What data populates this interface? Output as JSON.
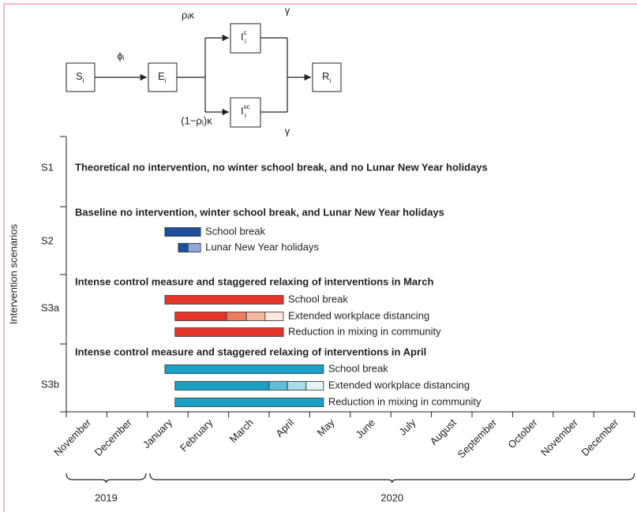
{
  "diagram": {
    "nodes": [
      {
        "base": "S",
        "sub": "i"
      },
      {
        "base": "E",
        "sub": "i"
      },
      {
        "base": "I",
        "sup": "c",
        "sub": "i"
      },
      {
        "base": "I",
        "sup": "sc",
        "sub": "i"
      },
      {
        "base": "R",
        "sub": "i"
      }
    ],
    "edge_labels": [
      "ϕᵢ",
      "ρᵢκ",
      "(1−ρᵢ)κ",
      "γ",
      "γ"
    ]
  },
  "chart_data": {
    "type": "gantt",
    "y_label": "Intervention scenarios",
    "categories": [
      "November",
      "December",
      "January",
      "February",
      "March",
      "April",
      "May",
      "June",
      "July",
      "August",
      "September",
      "October",
      "November",
      "December"
    ],
    "years": [
      "2019",
      "2020"
    ],
    "scenarios": [
      {
        "label": "S1",
        "title": "Theoretical no intervention, no winter school break, and no Lunar New Year holidays",
        "bars": []
      },
      {
        "label": "S2",
        "title": "Baseline no intervention, winter school break, and Lunar New Year holidays",
        "bars": [
          {
            "name": "School break",
            "breaks": [
              2.43,
              3.31
            ],
            "colors": [
              "#1d4f9a"
            ]
          },
          {
            "name": "Lunar New Year holidays",
            "breaks": [
              2.76,
              3.0,
              3.31
            ],
            "colors": [
              "#1d4f9a",
              "#8fa6d8"
            ]
          }
        ]
      },
      {
        "label": "S3a",
        "title": "Intense control measure and staggered relaxing of interventions in March",
        "bars": [
          {
            "name": "School break",
            "breaks": [
              2.43,
              5.35
            ],
            "colors": [
              "#e8352c"
            ]
          },
          {
            "name": "Extended workplace distancing",
            "breaks": [
              2.68,
              3.95,
              4.44,
              4.9,
              5.35
            ],
            "colors": [
              "#e8352c",
              "#ef7b5e",
              "#f5b9a0",
              "#fbe8df"
            ]
          },
          {
            "name": "Reduction in mixing in community",
            "breaks": [
              2.68,
              5.35
            ],
            "colors": [
              "#e8352c"
            ]
          }
        ]
      },
      {
        "label": "S3b",
        "title": "Intense control measure and staggered relaxing of interventions in April",
        "bars": [
          {
            "name": "School break",
            "breaks": [
              2.43,
              6.34
            ],
            "colors": [
              "#1aa0c4"
            ]
          },
          {
            "name": "Extended workplace distancing",
            "breaks": [
              2.68,
              5.0,
              5.45,
              5.91,
              6.34
            ],
            "colors": [
              "#1aa0c4",
              "#5ec0d8",
              "#a8dce9",
              "#e3f3f8"
            ]
          },
          {
            "name": "Reduction in mixing in community",
            "breaks": [
              2.68,
              6.34
            ],
            "colors": [
              "#1aa0c4"
            ]
          }
        ]
      }
    ]
  }
}
